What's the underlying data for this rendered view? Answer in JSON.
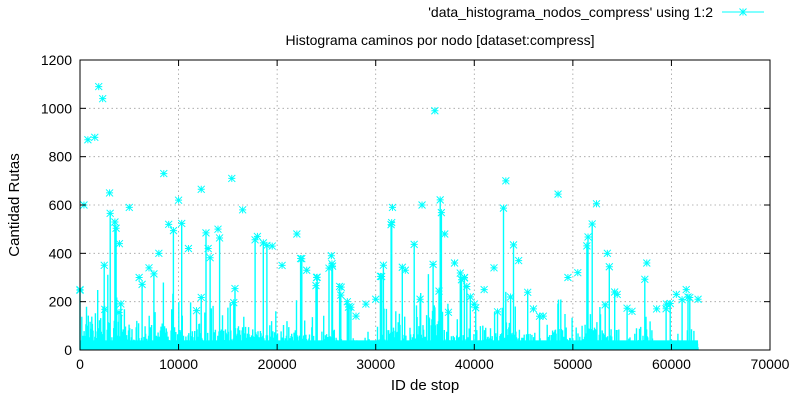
{
  "chart_data": {
    "type": "line",
    "title": "Histograma caminos por nodo [dataset:compress]",
    "xlabel": "ID de stop",
    "ylabel": "Cantidad Rutas",
    "xlim": [
      0,
      70000
    ],
    "ylim": [
      0,
      1200
    ],
    "xticks": [
      0,
      10000,
      20000,
      30000,
      40000,
      50000,
      60000,
      70000
    ],
    "yticks": [
      0,
      200,
      400,
      600,
      800,
      1000,
      1200
    ],
    "grid": true,
    "legend_position": "top-right",
    "series": [
      {
        "name": "'data_histograma_nodos_compress' using 1:2",
        "color": "#00ffff",
        "marker": "asterisk",
        "envelope": [
          [
            0,
            250
          ],
          [
            400,
            600
          ],
          [
            800,
            870
          ],
          [
            1500,
            880
          ],
          [
            1900,
            1090
          ],
          [
            2300,
            1040
          ],
          [
            3000,
            650
          ],
          [
            4000,
            440
          ],
          [
            5000,
            590
          ],
          [
            6000,
            300
          ],
          [
            7000,
            340
          ],
          [
            8000,
            400
          ],
          [
            8500,
            730
          ],
          [
            9000,
            520
          ],
          [
            10000,
            620
          ],
          [
            11000,
            420
          ],
          [
            12300,
            665
          ],
          [
            13000,
            420
          ],
          [
            14000,
            500
          ],
          [
            15400,
            710
          ],
          [
            16500,
            580
          ],
          [
            18000,
            470
          ],
          [
            19500,
            430
          ],
          [
            20500,
            350
          ],
          [
            22000,
            480
          ],
          [
            23000,
            330
          ],
          [
            24000,
            300
          ],
          [
            25500,
            390
          ],
          [
            26500,
            260
          ],
          [
            28000,
            140
          ],
          [
            29000,
            190
          ],
          [
            30000,
            210
          ],
          [
            31700,
            590
          ],
          [
            33000,
            330
          ],
          [
            34700,
            600
          ],
          [
            36000,
            990
          ],
          [
            37000,
            480
          ],
          [
            38000,
            360
          ],
          [
            39000,
            300
          ],
          [
            40000,
            190
          ],
          [
            41000,
            250
          ],
          [
            42000,
            340
          ],
          [
            43200,
            700
          ],
          [
            44500,
            370
          ],
          [
            46000,
            170
          ],
          [
            47000,
            140
          ],
          [
            48500,
            645
          ],
          [
            49500,
            300
          ],
          [
            50500,
            320
          ],
          [
            52400,
            605
          ],
          [
            53500,
            400
          ],
          [
            54500,
            230
          ],
          [
            56000,
            160
          ],
          [
            57500,
            360
          ],
          [
            58500,
            170
          ],
          [
            59500,
            190
          ],
          [
            60500,
            230
          ],
          [
            61500,
            250
          ],
          [
            62700,
            210
          ]
        ]
      }
    ]
  }
}
